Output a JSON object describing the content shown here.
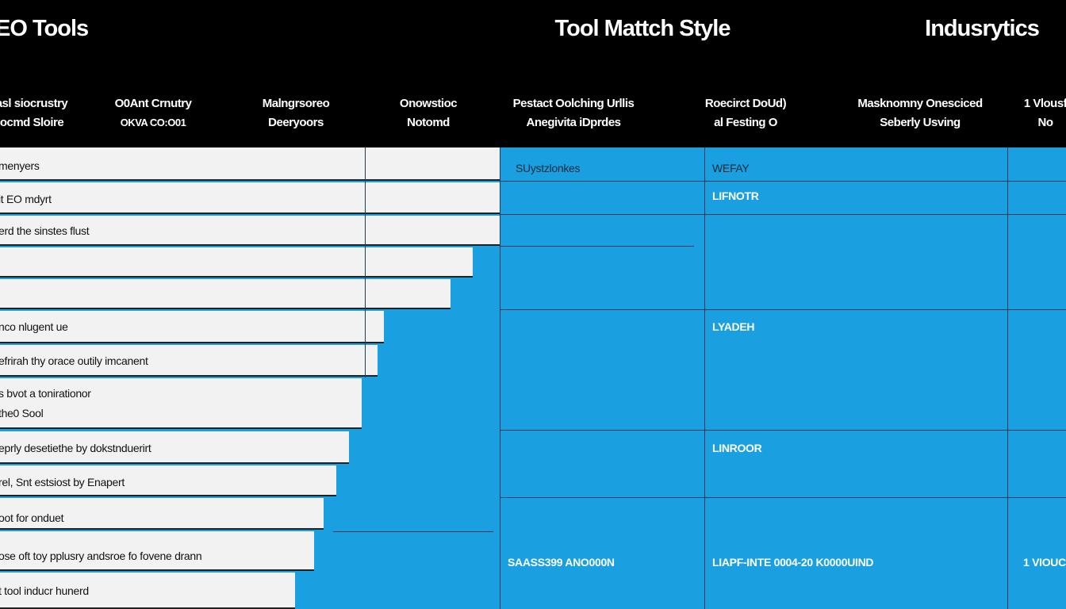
{
  "header": {
    "titles": [
      "EO Tools",
      "Tool Mattch Style",
      "Indusrytics"
    ]
  },
  "table": {
    "columns": [
      [
        "asl siocrustry",
        "ocmd Sloire"
      ],
      [
        "O0Ant Crnutry",
        "OKVA CO:O01"
      ],
      [
        "Malngrsoreo",
        "Deeryoors"
      ],
      [
        "Onowstioc",
        "Notomd"
      ],
      [
        "Pestact Oolching Urllis",
        "Anegivita iDprdes"
      ],
      [
        "Roecirct DoUd)",
        "al Festing O"
      ],
      [
        "Masknomny Onesciced",
        "Seberly Usving"
      ],
      [
        "1 Vlousf",
        "No"
      ]
    ],
    "rows": [
      "menyers",
      "it EO mdyrt",
      "erd the sinstes flust",
      "nco nlugent ue",
      "efrirah thy orace outily imcanent",
      "s bvot a tonirationor",
      "the0 Sool",
      "eprly desetiethe by dokstnduerirt",
      "rel, Snt estsiost by Enapert",
      "oot for onduet",
      "ose oft toy pplusry andsroe fo fovene drann",
      "t tool inducr hunerd"
    ],
    "cells": [
      "SUystzlonkes",
      "WEFAY",
      "LIFNOTR",
      "LYADEH",
      "LINROOR",
      "SAASS399 ANO000N",
      "LIAPF-INTE 0004-20 K0000UIND",
      "1 VIOUC"
    ]
  }
}
